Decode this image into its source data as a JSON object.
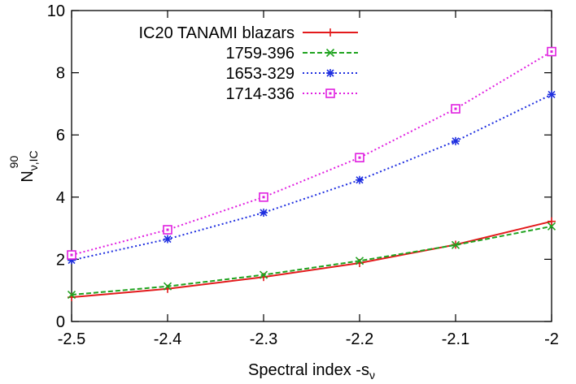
{
  "chart_data": {
    "type": "line",
    "xlabel": "Spectral index -s",
    "xlabel_sub": "ν",
    "ylabel": "N",
    "ylabel_sub": "ν,IC",
    "ylabel_sup": "90",
    "xlim": [
      -2.5,
      -2.0
    ],
    "ylim": [
      0,
      10
    ],
    "xticks": [
      -2.5,
      -2.4,
      -2.3,
      -2.2,
      -2.1,
      -2.0
    ],
    "xtick_labels": [
      "-2.5",
      "-2.4",
      "-2.3",
      "-2.2",
      "-2.1",
      "-2"
    ],
    "yticks": [
      0,
      2,
      4,
      6,
      8,
      10
    ],
    "ytick_labels": [
      "0",
      "2",
      "4",
      "6",
      "8",
      "10"
    ],
    "grid": false,
    "legend_position": "top-left",
    "series": [
      {
        "name": "IC20 TANAMI blazars",
        "color": "#e31a1c",
        "style": "solid",
        "marker": "plus",
        "x": [
          -2.5,
          -2.4,
          -2.3,
          -2.2,
          -2.1,
          -2.0
        ],
        "y": [
          0.78,
          1.05,
          1.43,
          1.88,
          2.47,
          3.22
        ]
      },
      {
        "name": "1759-396",
        "color": "#1fa31f",
        "style": "dashed",
        "marker": "x",
        "x": [
          -2.5,
          -2.4,
          -2.3,
          -2.2,
          -2.1,
          -2.0
        ],
        "y": [
          0.86,
          1.13,
          1.5,
          1.95,
          2.46,
          3.06
        ]
      },
      {
        "name": "1653-329",
        "color": "#1f2fe0",
        "style": "dotted",
        "marker": "star",
        "x": [
          -2.5,
          -2.4,
          -2.3,
          -2.2,
          -2.1,
          -2.0
        ],
        "y": [
          1.97,
          2.65,
          3.5,
          4.55,
          5.8,
          7.3
        ]
      },
      {
        "name": "1714-336",
        "color": "#e01fe0",
        "style": "dotted",
        "marker": "square",
        "x": [
          -2.5,
          -2.4,
          -2.3,
          -2.2,
          -2.1,
          -2.0
        ],
        "y": [
          2.14,
          2.95,
          4.0,
          5.27,
          6.84,
          8.68
        ]
      }
    ]
  }
}
